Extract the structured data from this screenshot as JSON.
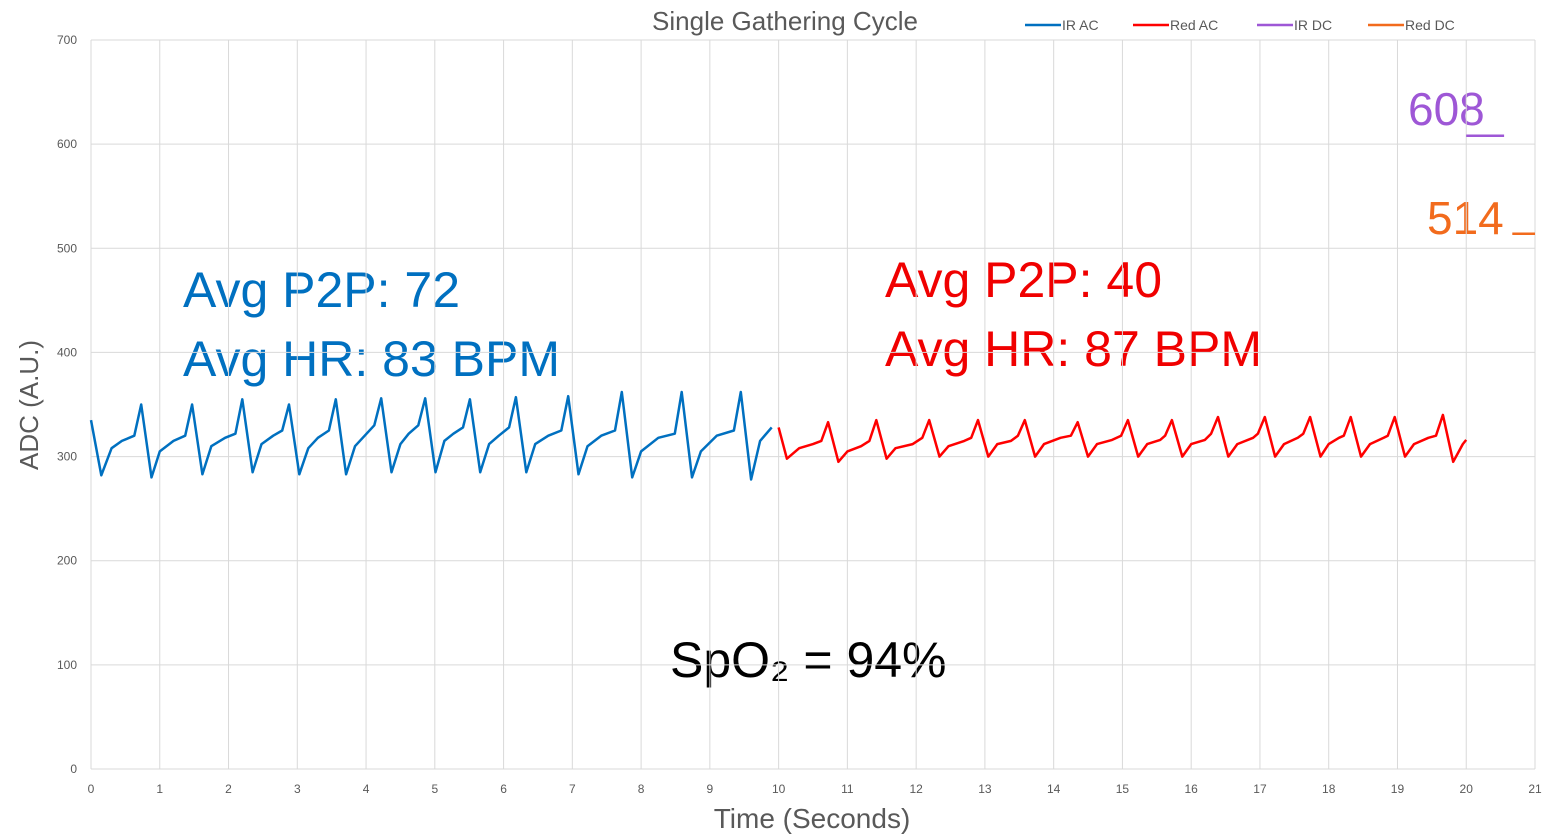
{
  "chart_data": {
    "type": "line",
    "title": "Single Gathering Cycle",
    "x_label": "Time (Seconds)",
    "y_label": "ADC (A.U.)",
    "xlim": [
      0,
      21
    ],
    "ylim": [
      0,
      700
    ],
    "xticks": [
      0,
      1,
      2,
      3,
      4,
      5,
      6,
      7,
      8,
      9,
      10,
      11,
      12,
      13,
      14,
      15,
      16,
      17,
      18,
      19,
      20,
      21
    ],
    "yticks": [
      0,
      100,
      200,
      300,
      400,
      500,
      600,
      700
    ],
    "grid": true,
    "legend": "top",
    "series": [
      {
        "name": "IR AC",
        "color": "#0070c0",
        "x": [
          0,
          0.15,
          0.3,
          0.45,
          0.63,
          0.73,
          0.88,
          1.0,
          1.2,
          1.37,
          1.47,
          1.62,
          1.75,
          1.95,
          2.1,
          2.2,
          2.35,
          2.48,
          2.65,
          2.78,
          2.88,
          3.03,
          3.16,
          3.3,
          3.46,
          3.56,
          3.71,
          3.84,
          3.98,
          4.12,
          4.22,
          4.37,
          4.5,
          4.62,
          4.76,
          4.86,
          5.01,
          5.14,
          5.27,
          5.41,
          5.51,
          5.66,
          5.79,
          5.93,
          6.08,
          6.18,
          6.33,
          6.46,
          6.65,
          6.84,
          6.94,
          7.09,
          7.22,
          7.42,
          7.62,
          7.72,
          7.87,
          8.0,
          8.25,
          8.49,
          8.59,
          8.74,
          8.87,
          9.1,
          9.35,
          9.45,
          9.6,
          9.73,
          9.9
        ],
        "values": [
          335,
          282,
          308,
          315,
          320,
          350,
          280,
          305,
          315,
          320,
          350,
          283,
          310,
          318,
          322,
          355,
          285,
          312,
          320,
          325,
          350,
          283,
          308,
          318,
          325,
          355,
          283,
          310,
          320,
          330,
          356,
          285,
          312,
          322,
          330,
          356,
          285,
          315,
          322,
          328,
          355,
          285,
          312,
          320,
          328,
          357,
          285,
          312,
          320,
          325,
          358,
          283,
          310,
          320,
          325,
          362,
          280,
          305,
          318,
          322,
          362,
          280,
          305,
          320,
          325,
          362,
          278,
          315,
          328
        ]
      },
      {
        "name": "Red AC",
        "color": "#ff0000",
        "x": [
          10,
          10.12,
          10.3,
          10.5,
          10.62,
          10.72,
          10.87,
          11.0,
          11.2,
          11.32,
          11.42,
          11.57,
          11.7,
          11.95,
          12.09,
          12.19,
          12.34,
          12.47,
          12.7,
          12.8,
          12.9,
          13.05,
          13.18,
          13.38,
          13.48,
          13.58,
          13.73,
          13.86,
          14.1,
          14.25,
          14.35,
          14.5,
          14.63,
          14.85,
          14.98,
          15.08,
          15.23,
          15.36,
          15.55,
          15.62,
          15.72,
          15.87,
          16.0,
          16.2,
          16.29,
          16.39,
          16.54,
          16.67,
          16.9,
          16.97,
          17.07,
          17.22,
          17.35,
          17.55,
          17.63,
          17.73,
          17.88,
          18.0,
          18.15,
          18.22,
          18.32,
          18.47,
          18.6,
          18.8,
          18.86,
          18.96,
          19.11,
          19.24,
          19.45,
          19.56,
          19.66,
          19.81,
          19.95,
          20.0
        ],
        "values": [
          328,
          298,
          308,
          312,
          315,
          333,
          295,
          305,
          310,
          315,
          335,
          298,
          308,
          312,
          318,
          335,
          300,
          310,
          315,
          318,
          335,
          300,
          312,
          315,
          320,
          335,
          300,
          312,
          318,
          320,
          333,
          300,
          312,
          316,
          320,
          335,
          300,
          312,
          316,
          320,
          335,
          300,
          312,
          316,
          322,
          338,
          300,
          312,
          318,
          322,
          338,
          300,
          312,
          318,
          322,
          338,
          300,
          312,
          318,
          320,
          338,
          300,
          312,
          318,
          320,
          338,
          300,
          312,
          318,
          320,
          340,
          295,
          312,
          316
        ]
      },
      {
        "name": "IR DC",
        "color": "#9e57d6",
        "x": [
          20,
          20.55
        ],
        "values": [
          608,
          608
        ]
      },
      {
        "name": "Red DC",
        "color": "#f26b1d",
        "x": [
          20.67,
          21
        ],
        "values": [
          514,
          514
        ]
      }
    ],
    "annotations": [
      "Avg P2P: 72",
      "Avg HR: 83 BPM",
      "Avg P2P: 40",
      "Avg HR: 87 BPM",
      "SpO₂ = 94%",
      "608",
      "514"
    ]
  }
}
